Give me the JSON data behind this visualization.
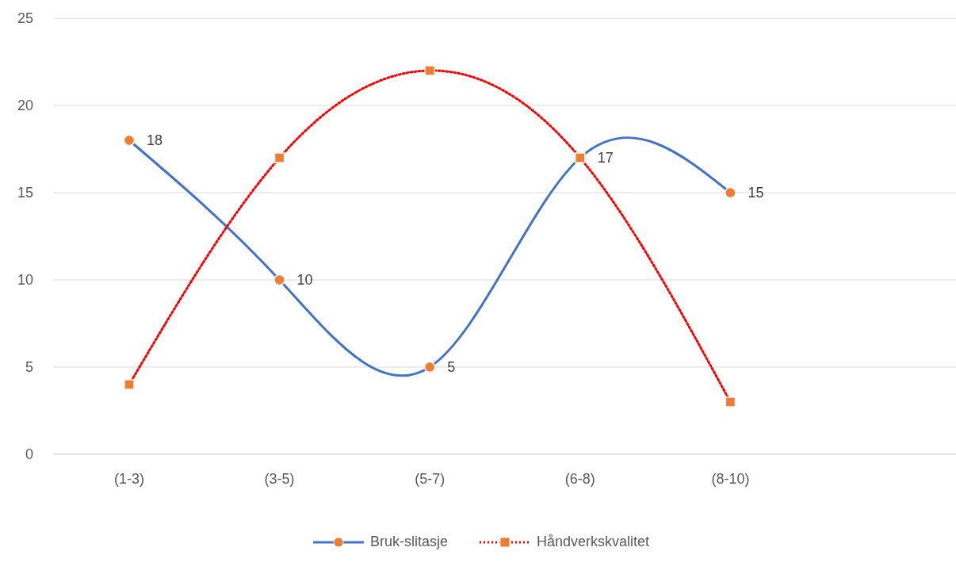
{
  "chart_data": {
    "type": "line",
    "categories": [
      "(1-3)",
      "(3-5)",
      "(5-7)",
      "(6-8)",
      "(8-10)",
      null
    ],
    "series": [
      {
        "name": "Bruk-slitasje",
        "color": "#4472c4",
        "values": [
          18,
          10,
          5,
          17,
          15,
          null
        ],
        "marker": "circle",
        "line_style": "solid",
        "colors": [
          "#ed7d31",
          "#ed7d31",
          "#ed7d31",
          "#ed7d31",
          "#ed7d31",
          null
        ],
        "value_labels": [
          "18",
          "10",
          "5",
          "17",
          "15",
          null
        ]
      },
      {
        "name": "Håndverkskvalitet",
        "color": "#ff0000",
        "values": [
          4,
          17,
          22,
          17,
          3,
          null
        ],
        "marker": "square",
        "line_style": "dotted",
        "colors": [
          "#ed7d31",
          "#ed7d31",
          "#ed7d31",
          "#ed7d31",
          "#ed7d31",
          null
        ]
      }
    ],
    "ylim": [
      0,
      25
    ],
    "yticks": [
      0,
      5,
      10,
      15,
      20,
      25
    ],
    "grid": "y",
    "legend": "bottom"
  }
}
